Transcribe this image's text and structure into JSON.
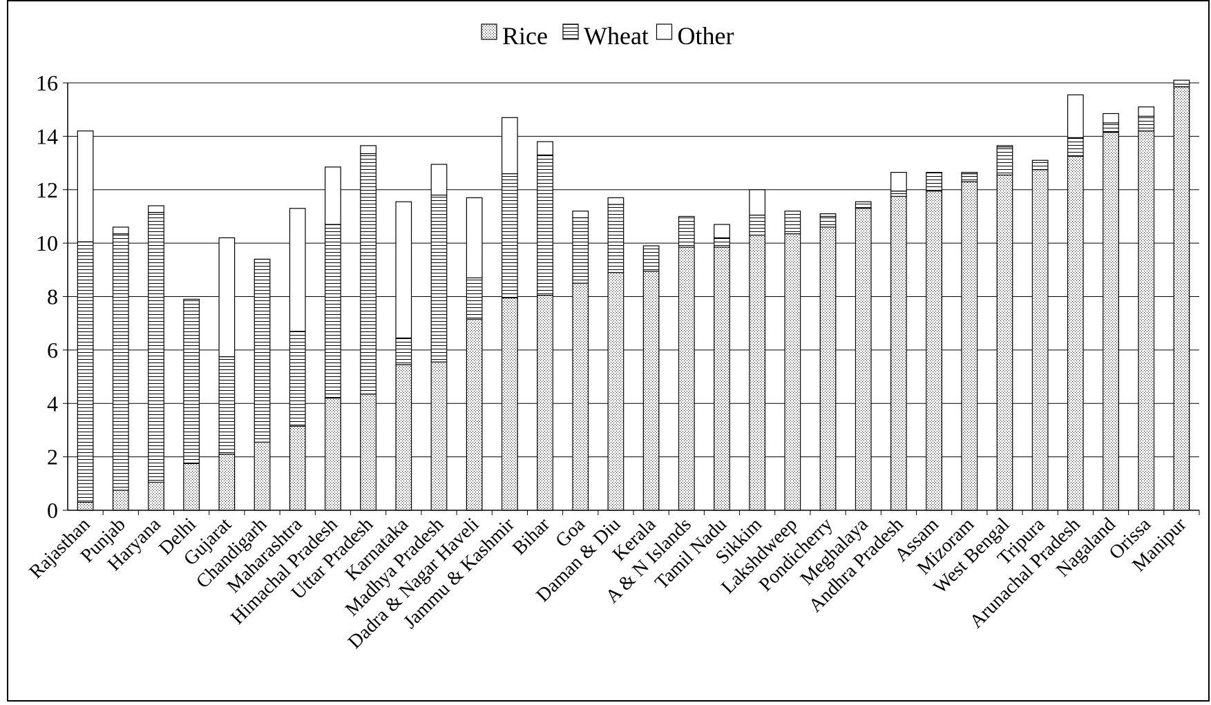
{
  "chart_data": {
    "type": "bar",
    "stacked": true,
    "categories": [
      "Rajasthan",
      "Punjab",
      "Haryana",
      "Delhi",
      "Gujarat",
      "Chandigarh",
      "Maharashtra",
      "Himachal Pradesh",
      "Uttar Pradesh",
      "Karnataka",
      "Madhya Pradesh",
      "Dadra & Nagar  Haveli",
      "Jammu & Kashmir",
      "Bihar",
      "Goa",
      "Daman & Diu",
      "Kerala",
      "A & N Islands",
      "Tamil Nadu",
      "Sikkim",
      "Lakshdweep",
      "Pondicherry",
      "Meghalaya",
      "Andhra Pradesh",
      "Assam",
      "Mizoram",
      "West Bengal",
      "Tripura",
      "Arunachal Pradesh",
      "Nagaland",
      "Orissa",
      "Manipur"
    ],
    "series": [
      {
        "name": "Rice",
        "pattern": "dots",
        "values": [
          0.3,
          0.75,
          1.05,
          1.75,
          2.1,
          2.55,
          3.15,
          4.2,
          4.35,
          5.45,
          5.55,
          7.15,
          7.95,
          8.05,
          8.5,
          8.9,
          8.95,
          9.85,
          9.85,
          10.3,
          10.35,
          10.6,
          11.3,
          11.75,
          11.95,
          12.3,
          12.55,
          12.75,
          13.25,
          14.15,
          14.2,
          15.85
        ]
      },
      {
        "name": "Wheat",
        "pattern": "hlines",
        "values": [
          9.75,
          9.6,
          10.1,
          6.15,
          3.65,
          6.85,
          3.55,
          6.5,
          9.0,
          1.0,
          6.25,
          1.55,
          4.65,
          5.25,
          2.45,
          2.55,
          0.95,
          1.15,
          0.35,
          0.75,
          0.85,
          0.4,
          0.25,
          0.2,
          0.7,
          0.3,
          1.05,
          0.35,
          0.7,
          0.35,
          0.55,
          0.1
        ]
      },
      {
        "name": "Other",
        "pattern": "blank",
        "values": [
          4.15,
          0.25,
          0.25,
          0.0,
          4.45,
          0.0,
          4.6,
          2.15,
          0.3,
          5.1,
          1.15,
          3.0,
          2.1,
          0.5,
          0.25,
          0.25,
          0.0,
          0.0,
          0.5,
          0.95,
          0.0,
          0.1,
          0.0,
          0.7,
          0.0,
          0.05,
          0.05,
          0.0,
          1.6,
          0.35,
          0.35,
          0.15
        ]
      }
    ],
    "title": "",
    "xlabel": "",
    "ylabel": "",
    "ylim": [
      0,
      16
    ],
    "yticks": [
      0,
      2,
      4,
      6,
      8,
      10,
      12,
      14,
      16
    ],
    "grid": true,
    "legend_position": "top-center"
  }
}
